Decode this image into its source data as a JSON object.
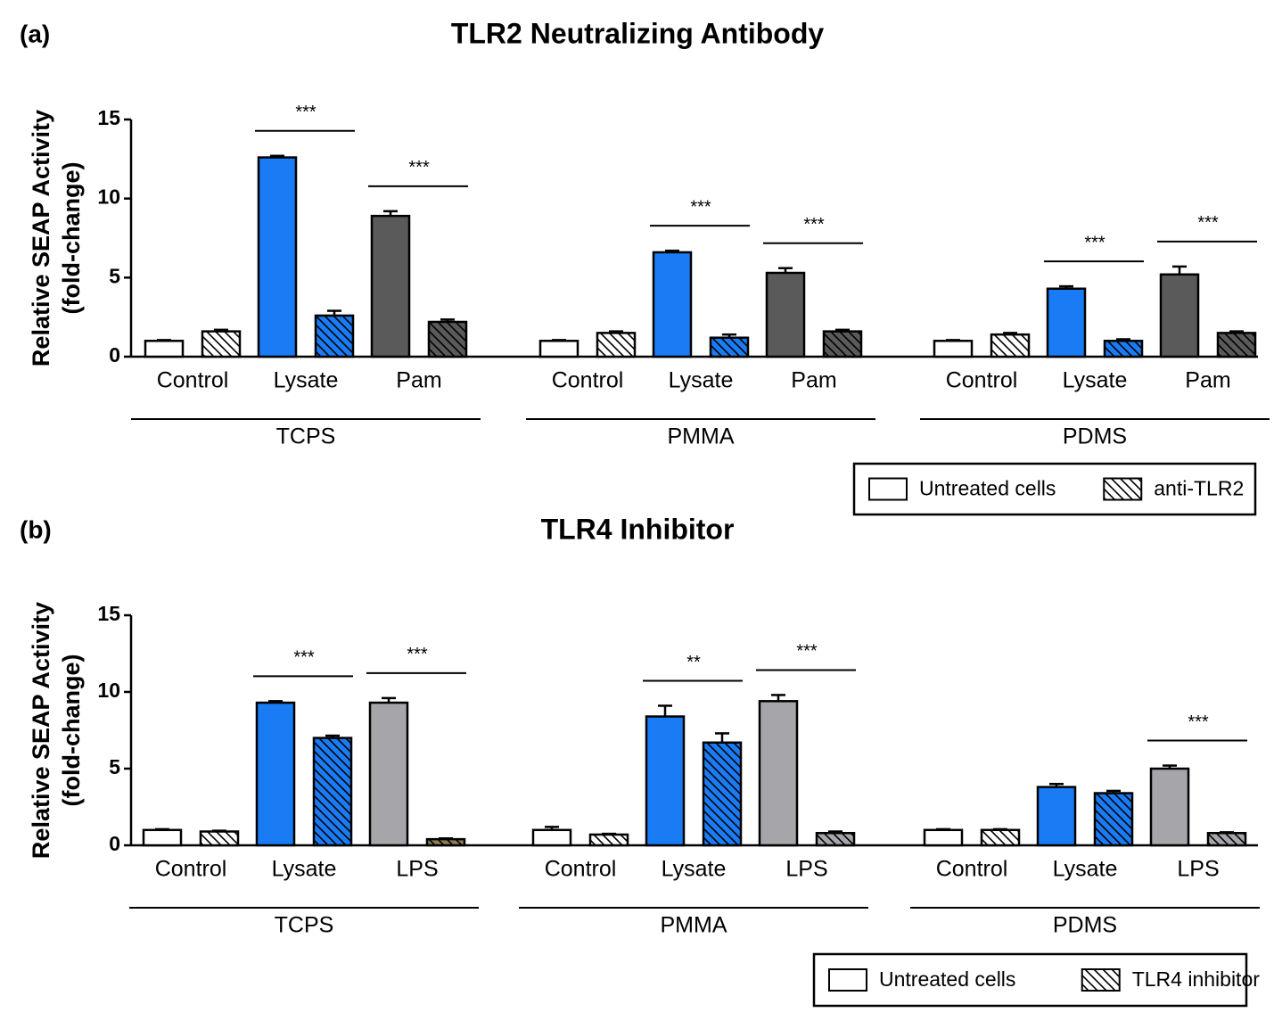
{
  "chart_data": [
    {
      "type": "bar",
      "panel": "(a)",
      "title": "TLR2 Neutralizing Antibody",
      "ylabel": [
        "Relative SEAP Activity",
        "(fold-change)"
      ],
      "ylim": [
        0,
        15
      ],
      "yticks": [
        0,
        5,
        10,
        15
      ],
      "groups": [
        {
          "name": "TCPS",
          "categories": [
            "Control",
            "Lysate",
            "Pam"
          ],
          "significance": [
            null,
            "***",
            "***"
          ]
        },
        {
          "name": "PMMA",
          "categories": [
            "Control",
            "Lysate",
            "Pam"
          ],
          "significance": [
            null,
            "***",
            "***"
          ]
        },
        {
          "name": "PDMS",
          "categories": [
            "Control",
            "Lysate",
            "Pam"
          ],
          "significance": [
            null,
            "***",
            "***"
          ]
        }
      ],
      "series": [
        {
          "name": "Untreated cells",
          "hatch": false,
          "colors": [
            "#ffffff",
            "#1a7cf5",
            "#5a5a5a",
            "#ffffff",
            "#1a7cf5",
            "#5a5a5a",
            "#ffffff",
            "#1a7cf5",
            "#5a5a5a"
          ],
          "values": [
            1.0,
            12.6,
            8.9,
            1.0,
            6.6,
            5.3,
            1.0,
            4.3,
            5.2
          ],
          "errors": [
            0.05,
            0.1,
            0.3,
            0.05,
            0.1,
            0.3,
            0.05,
            0.15,
            0.5
          ]
        },
        {
          "name": "anti-TLR2",
          "hatch": true,
          "colors": [
            "#ffffff",
            "#1a7cf5",
            "#5a5a5a",
            "#ffffff",
            "#1a7cf5",
            "#5a5a5a",
            "#ffffff",
            "#1a7cf5",
            "#5a5a5a"
          ],
          "values": [
            1.6,
            2.6,
            2.2,
            1.5,
            1.2,
            1.6,
            1.4,
            1.0,
            1.5
          ],
          "errors": [
            0.1,
            0.3,
            0.15,
            0.1,
            0.2,
            0.1,
            0.1,
            0.1,
            0.1
          ]
        }
      ]
    },
    {
      "type": "bar",
      "panel": "(b)",
      "title": "TLR4 Inhibitor",
      "ylabel": [
        "Relative SEAP Activity",
        "(fold-change)"
      ],
      "ylim": [
        0,
        15
      ],
      "yticks": [
        0,
        5,
        10,
        15
      ],
      "groups": [
        {
          "name": "TCPS",
          "categories": [
            "Control",
            "Lysate",
            "LPS"
          ],
          "significance": [
            null,
            "***",
            "***"
          ]
        },
        {
          "name": "PMMA",
          "categories": [
            "Control",
            "Lysate",
            "LPS"
          ],
          "significance": [
            null,
            "**",
            "***"
          ]
        },
        {
          "name": "PDMS",
          "categories": [
            "Control",
            "Lysate",
            "LPS"
          ],
          "significance": [
            null,
            null,
            "***"
          ]
        }
      ],
      "series": [
        {
          "name": "Untreated cells",
          "hatch": false,
          "colors": [
            "#ffffff",
            "#1a7cf5",
            "#a6a6aa",
            "#ffffff",
            "#1a7cf5",
            "#a6a6aa",
            "#ffffff",
            "#1a7cf5",
            "#a6a6aa"
          ],
          "values": [
            1.0,
            9.3,
            9.3,
            1.0,
            8.4,
            9.4,
            1.0,
            3.8,
            5.0
          ],
          "errors": [
            0.05,
            0.1,
            0.3,
            0.2,
            0.7,
            0.4,
            0.05,
            0.2,
            0.2
          ]
        },
        {
          "name": "TLR4 inhibitor",
          "hatch": true,
          "colors": [
            "#ffffff",
            "#1a7cf5",
            "#8c7d50",
            "#ffffff",
            "#1a7cf5",
            "#a6a6aa",
            "#ffffff",
            "#1a7cf5",
            "#a6a6aa"
          ],
          "values": [
            0.9,
            7.0,
            0.4,
            0.7,
            6.7,
            0.8,
            1.0,
            3.4,
            0.8
          ],
          "errors": [
            0.05,
            0.15,
            0.05,
            0.05,
            0.6,
            0.1,
            0.05,
            0.15,
            0.05
          ]
        }
      ]
    }
  ]
}
